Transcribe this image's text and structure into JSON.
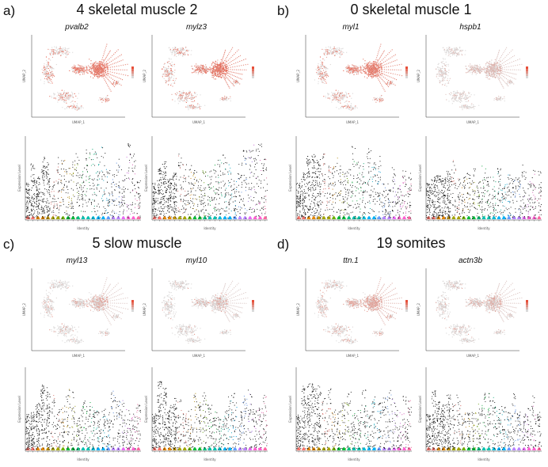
{
  "panels": [
    {
      "letter": "a)",
      "title": "4 skeletal muscle 2",
      "genes": [
        "pvalb2",
        "mylz3"
      ],
      "umap_intensity": [
        0.95,
        0.92
      ],
      "umap_scope": [
        1.0,
        1.0
      ]
    },
    {
      "letter": "b)",
      "title": "0 skeletal muscle 1",
      "genes": [
        "myl1",
        "hspb1"
      ],
      "umap_intensity": [
        0.9,
        0.35
      ],
      "umap_scope": [
        1.0,
        0.7
      ]
    },
    {
      "letter": "c)",
      "title": "5 slow muscle",
      "genes": [
        "myl13",
        "myl10"
      ],
      "umap_intensity": [
        0.6,
        0.55
      ],
      "umap_scope": [
        0.35,
        0.3
      ]
    },
    {
      "letter": "d)",
      "title": "19 somites",
      "genes": [
        "ttn.1",
        "actn3b"
      ],
      "umap_intensity": [
        0.55,
        0.45
      ],
      "umap_scope": [
        0.8,
        0.5
      ]
    }
  ],
  "chart_data": [
    {
      "type": "scatter",
      "panel": "a",
      "gene": "pvalb2",
      "plot": "UMAP feature plot",
      "xlabel": "UMAP_1",
      "ylabel": "UMAP_2"
    },
    {
      "type": "scatter",
      "panel": "a",
      "gene": "mylz3",
      "plot": "UMAP feature plot",
      "xlabel": "UMAP_1",
      "ylabel": "UMAP_2"
    },
    {
      "type": "scatter",
      "panel": "b",
      "gene": "myl1",
      "plot": "UMAP feature plot",
      "xlabel": "UMAP_1",
      "ylabel": "UMAP_2"
    },
    {
      "type": "scatter",
      "panel": "b",
      "gene": "hspb1",
      "plot": "UMAP feature plot",
      "xlabel": "UMAP_1",
      "ylabel": "UMAP_2"
    },
    {
      "type": "scatter",
      "panel": "c",
      "gene": "myl13",
      "plot": "UMAP feature plot",
      "xlabel": "UMAP_1",
      "ylabel": "UMAP_2"
    },
    {
      "type": "scatter",
      "panel": "c",
      "gene": "myl10",
      "plot": "UMAP feature plot",
      "xlabel": "UMAP_1",
      "ylabel": "UMAP_2"
    },
    {
      "type": "scatter",
      "panel": "d",
      "gene": "ttn.1",
      "plot": "UMAP feature plot",
      "xlabel": "UMAP_1",
      "ylabel": "UMAP_2"
    },
    {
      "type": "scatter",
      "panel": "d",
      "gene": "actn3b",
      "plot": "UMAP feature plot",
      "xlabel": "UMAP_1",
      "ylabel": "UMAP_2"
    },
    {
      "type": "violin",
      "panel": "a",
      "gene": "pvalb2",
      "xlabel": "Identity",
      "ylabel": "Expression Level",
      "n_clusters": 23
    },
    {
      "type": "violin",
      "panel": "a",
      "gene": "mylz3",
      "xlabel": "Identity",
      "ylabel": "Expression Level",
      "n_clusters": 23
    },
    {
      "type": "violin",
      "panel": "b",
      "gene": "myl1",
      "xlabel": "Identity",
      "ylabel": "Expression Level",
      "n_clusters": 23
    },
    {
      "type": "violin",
      "panel": "b",
      "gene": "hspb1",
      "xlabel": "Identity",
      "ylabel": "Expression Level",
      "n_clusters": 23
    },
    {
      "type": "violin",
      "panel": "c",
      "gene": "myl13",
      "xlabel": "Identity",
      "ylabel": "Expression Level",
      "n_clusters": 23
    },
    {
      "type": "violin",
      "panel": "c",
      "gene": "myl10",
      "xlabel": "Identity",
      "ylabel": "Expression Level",
      "n_clusters": 23
    },
    {
      "type": "violin",
      "panel": "d",
      "gene": "ttn.1",
      "xlabel": "Identity",
      "ylabel": "Expression Level",
      "n_clusters": 23
    },
    {
      "type": "violin",
      "panel": "d",
      "gene": "actn3b",
      "xlabel": "Identity",
      "ylabel": "Expression Level",
      "n_clusters": 23
    }
  ],
  "colors": {
    "high": "#e8503a",
    "low": "#d9d9d9",
    "points": "#111111",
    "cluster_palette": [
      "#f8766d",
      "#e58700",
      "#c99800",
      "#a3a500",
      "#6bb100",
      "#00ba38",
      "#00bf7d",
      "#00c0af",
      "#00bcd8",
      "#00b0f6",
      "#619cff",
      "#b983ff",
      "#e76bf3",
      "#fd61d1",
      "#ff67a4"
    ]
  }
}
